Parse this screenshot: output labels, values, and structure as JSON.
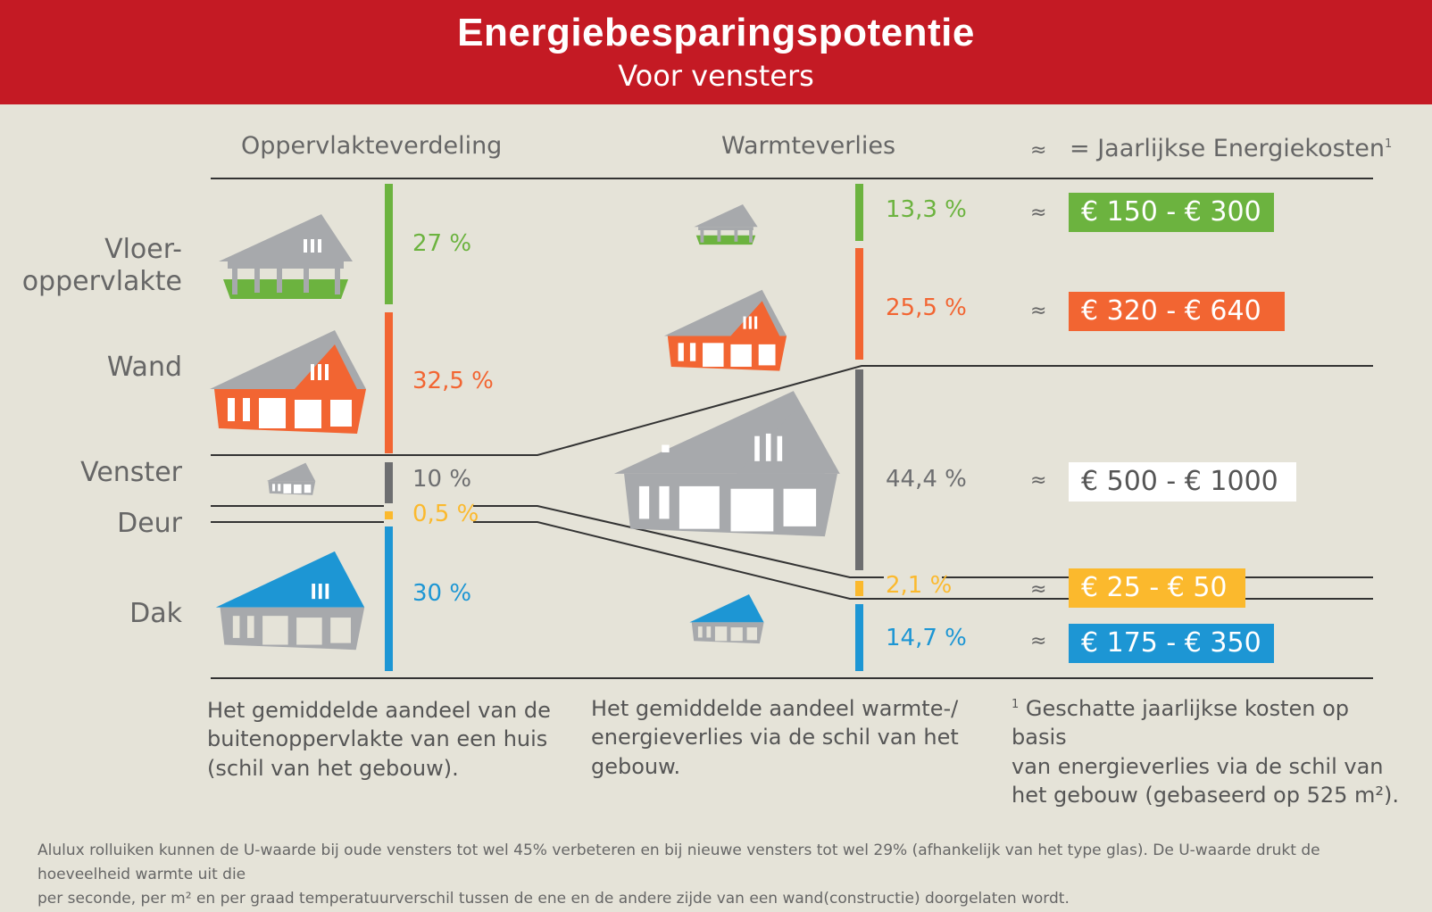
{
  "header": {
    "title": "Energiebesparingspotentie",
    "subtitle": "Voor vensters"
  },
  "columns": {
    "surface": "Oppervlakteverdeling",
    "heatloss": "Warmteverlies",
    "approx": "≈",
    "costs": "= Jaarlijkse Energiekosten",
    "costs_note_marker": "1"
  },
  "rows": [
    {
      "label": "Vloer-oppervlakte",
      "label_line1": "Vloer-",
      "label_line2": "oppervlakte",
      "surface_pct": "27 %",
      "heatloss_pct": "13,3 %",
      "cost": "€ 150 - € 300",
      "color": "#6cb33f",
      "text_color": "#ffffff"
    },
    {
      "label": "Wand",
      "surface_pct": "32,5 %",
      "heatloss_pct": "25,5 %",
      "cost": "€ 320 - € 640",
      "color": "#f26532",
      "text_color": "#ffffff"
    },
    {
      "label": "Venster",
      "surface_pct": "10 %",
      "heatloss_pct": "44,4 %",
      "cost": "€ 500 - € 1000",
      "color": "#6d6e70",
      "cost_bg": "#ffffff",
      "text_color": "#555555"
    },
    {
      "label": "Deur",
      "surface_pct": "0,5 %",
      "heatloss_pct": "2,1 %",
      "cost": "€ 25 - € 50",
      "color": "#fbb92d",
      "text_color": "#ffffff"
    },
    {
      "label": "Dak",
      "surface_pct": "30 %",
      "heatloss_pct": "14,7 %",
      "cost": "€ 175 - € 350",
      "color": "#1d96d4",
      "text_color": "#ffffff"
    }
  ],
  "notes": {
    "surface_line1": "Het gemiddelde aandeel van de",
    "surface_line2": "buitenoppervlakte van een huis",
    "surface_line3": "(schil van het gebouw).",
    "heatloss_line1": "Het gemiddelde aandeel warmte-/",
    "heatloss_line2": "energieverlies via de schil van het",
    "heatloss_line3": "gebouw.",
    "costs_marker": "1",
    "costs_line1": " Geschatte jaarlijkse kosten op basis",
    "costs_line2": "van energieverlies via de schil van",
    "costs_line3": "het gebouw (gebaseerd op 525 m²)."
  },
  "footer": {
    "line1": "Alulux rolluiken kunnen de U-waarde bij oude vensters tot wel 45% verbeteren en bij nieuwe vensters tot wel 29% (afhankelijk van het type glas). De U-waarde drukt de hoeveelheid warmte uit die",
    "line2": "per seconde, per m² en per graad temperatuurverschil tussen de ene en de andere zijde van een wand(constructie) doorgelaten wordt."
  },
  "icons": [
    "house-floor-icon",
    "house-wall-icon",
    "house-window-icon",
    "house-roof-icon",
    "house-large-window-icon"
  ]
}
